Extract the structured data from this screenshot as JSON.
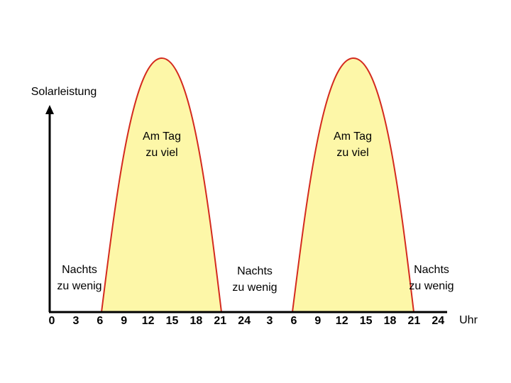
{
  "y_axis_label": "Solarleistung",
  "x_axis_label": "Uhr",
  "x_ticks": [
    [
      0,
      3,
      6,
      9,
      12,
      15,
      18,
      21,
      24
    ],
    [
      3,
      6,
      9,
      12,
      15,
      18,
      21,
      24
    ]
  ],
  "annotations": [
    [
      "Nachts",
      "zu wenig"
    ],
    [
      "Am Tag",
      "zu viel"
    ],
    [
      "Nachts",
      "zu wenig"
    ],
    [
      "Am Tag",
      "zu viel"
    ],
    [
      "Nachts",
      "zu wenig"
    ]
  ]
}
